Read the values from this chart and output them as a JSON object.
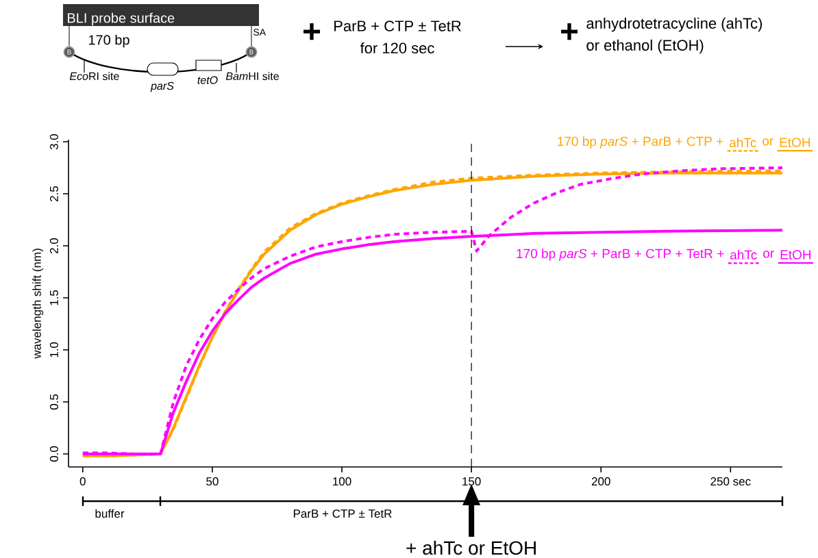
{
  "chart_data": {
    "type": "line",
    "ylabel": "wavelength shift (nm)",
    "xlim": [
      -5.5,
      270
    ],
    "ylim": [
      -0.125,
      3.02
    ],
    "xticks": [
      0,
      50,
      100,
      150,
      200,
      {
        "value": 250,
        "label": "250 sec"
      }
    ],
    "yticks": [
      {
        "value": 0,
        "label": "0.0"
      },
      {
        "value": 0.5,
        "label": "0.5"
      },
      {
        "value": 1,
        "label": "1.0"
      },
      {
        "value": 1.5,
        "label": "1.5"
      },
      {
        "value": 2,
        "label": "2.0"
      },
      {
        "value": 2.5,
        "label": "2.5"
      },
      {
        "value": 3,
        "label": "3.0"
      }
    ],
    "grid": false,
    "marker": "none",
    "series": [
      {
        "color": "#ffa500",
        "line_style": "dashed",
        "x": [
          0,
          10,
          20,
          30,
          35,
          40,
          45,
          50,
          55,
          60,
          65,
          70,
          80,
          90,
          100,
          110,
          120,
          135,
          150,
          175,
          200,
          225,
          270
        ],
        "values": [
          -0.02,
          -0.02,
          -0.01,
          0.0,
          0.24,
          0.54,
          0.84,
          1.12,
          1.37,
          1.58,
          1.77,
          1.94,
          2.17,
          2.31,
          2.41,
          2.48,
          2.54,
          2.61,
          2.65,
          2.68,
          2.7,
          2.71,
          2.72
        ]
      },
      {
        "color": "#ffa500",
        "line_style": "solid",
        "x": [
          0,
          10,
          20,
          30,
          35,
          40,
          45,
          50,
          55,
          60,
          65,
          70,
          80,
          90,
          100,
          110,
          120,
          135,
          150,
          175,
          200,
          225,
          270
        ],
        "values": [
          -0.02,
          -0.02,
          -0.01,
          0.0,
          0.25,
          0.55,
          0.85,
          1.12,
          1.36,
          1.57,
          1.76,
          1.92,
          2.15,
          2.3,
          2.4,
          2.47,
          2.53,
          2.59,
          2.63,
          2.67,
          2.69,
          2.7,
          2.7
        ]
      },
      {
        "color": "#ff00ff",
        "line_style": "dashed",
        "x": [
          0,
          10,
          20,
          30,
          35,
          40,
          45,
          50,
          55,
          60,
          65,
          70,
          80,
          90,
          100,
          110,
          120,
          135,
          150,
          152,
          157,
          165,
          174,
          183,
          192,
          205,
          216,
          230,
          245,
          270
        ],
        "values": [
          0.01,
          0.01,
          0.0,
          0.0,
          0.5,
          0.85,
          1.1,
          1.3,
          1.46,
          1.58,
          1.69,
          1.78,
          1.9,
          1.99,
          2.04,
          2.08,
          2.11,
          2.13,
          2.14,
          1.95,
          2.1,
          2.27,
          2.41,
          2.51,
          2.59,
          2.65,
          2.69,
          2.72,
          2.74,
          2.75
        ]
      },
      {
        "color": "#ff00ff",
        "line_style": "solid",
        "x": [
          0,
          10,
          20,
          30,
          35,
          40,
          45,
          50,
          55,
          60,
          65,
          70,
          80,
          90,
          100,
          110,
          120,
          135,
          150,
          175,
          200,
          225,
          270
        ],
        "values": [
          0.0,
          0.0,
          0.0,
          0.0,
          0.4,
          0.7,
          0.97,
          1.18,
          1.35,
          1.48,
          1.6,
          1.69,
          1.83,
          1.92,
          1.97,
          2.01,
          2.04,
          2.07,
          2.09,
          2.12,
          2.13,
          2.14,
          2.15
        ]
      }
    ],
    "ref_lines": [
      {
        "axis": "x",
        "value": 150,
        "label": "+ ahTc or EtOH",
        "color": "#000000",
        "line_style": "dashed"
      }
    ],
    "annotations": [
      "170 bp *parS* + ParB + CTP +",
      "or",
      "170 bp *parS* + ParB + CTP + TetR +",
      "or",
      "BLI probe surface",
      "170 bp",
      "SA",
      "B",
      "B",
      "Eco",
      "*parS*",
      "*tetO*",
      "Bam",
      "+",
      "ParB + CTP ± TetR",
      "for 120 sec",
      "+",
      "anhydrotetracycline (ahTc)",
      "or ethanol (EtOH)",
      "RI site",
      "HI site",
      "buffer",
      "ParB + CTP ± TetR",
      "ahTc",
      "EtOH",
      "ahTc",
      "EtOH"
    ]
  }
}
